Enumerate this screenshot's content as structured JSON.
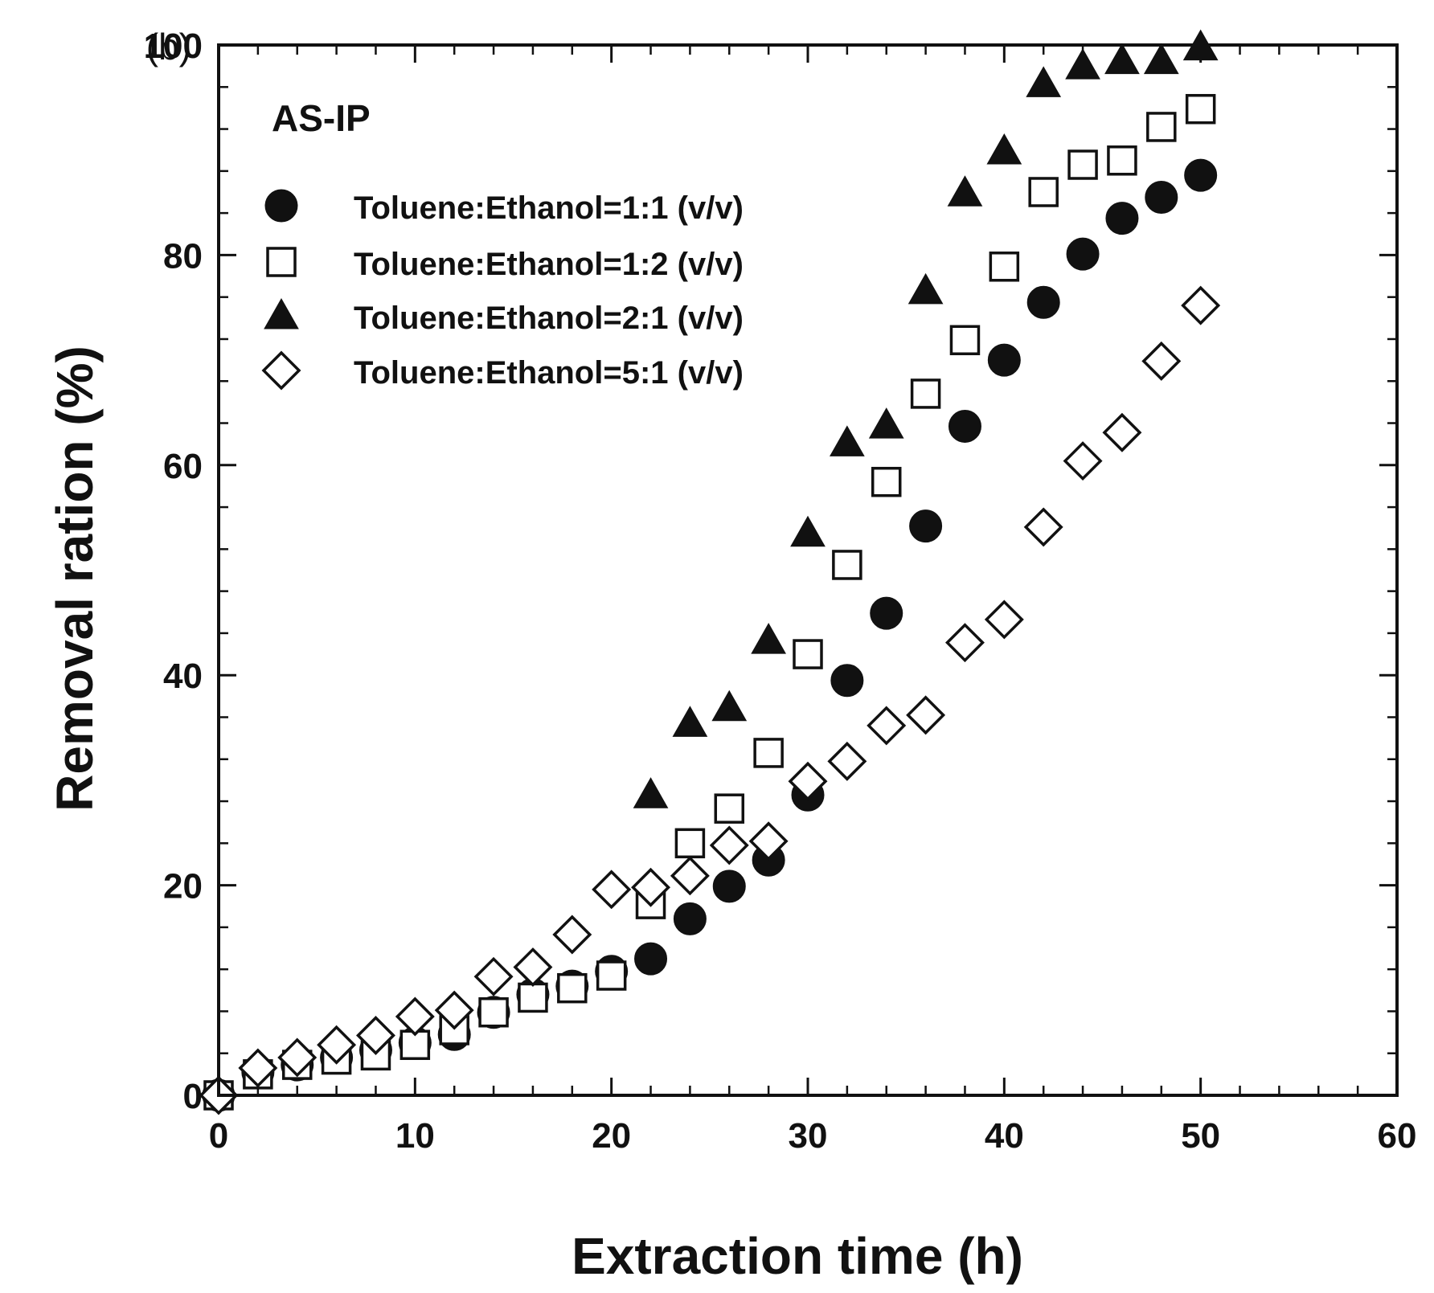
{
  "chart_data": {
    "type": "scatter",
    "panel_label": "(b)",
    "annotation": "AS-IP",
    "xlabel": "Extraction time (h)",
    "ylabel": "Removal ration (%)",
    "xlim": [
      0,
      60
    ],
    "ylim": [
      0,
      100
    ],
    "x_ticks": [
      0,
      10,
      20,
      30,
      40,
      50,
      60
    ],
    "y_ticks": [
      0,
      20,
      40,
      60,
      80,
      100
    ],
    "grid": false,
    "legend_position": "top-left",
    "series": [
      {
        "name": "Toluene:Ethanol=1:1 (v/v)",
        "marker": "filled-circle",
        "x": [
          0,
          2,
          4,
          6,
          8,
          10,
          12,
          14,
          16,
          18,
          20,
          22,
          24,
          26,
          28,
          30,
          32,
          34,
          36,
          38,
          40,
          42,
          44,
          46,
          48,
          50
        ],
        "y": [
          0,
          2.2,
          2.9,
          3.6,
          4.3,
          5.0,
          5.8,
          7.9,
          9.6,
          10.4,
          11.8,
          13.0,
          16.8,
          19.9,
          22.4,
          28.6,
          39.5,
          45.9,
          54.2,
          63.7,
          70.0,
          75.5,
          80.1,
          83.5,
          85.5,
          87.6
        ]
      },
      {
        "name": "Toluene:Ethanol=1:2 (v/v)",
        "marker": "open-square",
        "x": [
          0,
          2,
          4,
          6,
          8,
          10,
          12,
          14,
          16,
          18,
          20,
          22,
          24,
          26,
          28,
          30,
          32,
          34,
          36,
          38,
          40,
          42,
          44,
          46,
          48,
          50
        ],
        "y": [
          0,
          2.0,
          2.9,
          3.4,
          3.8,
          4.8,
          6.2,
          7.9,
          9.3,
          10.2,
          11.4,
          18.2,
          24.0,
          27.3,
          32.6,
          42.0,
          50.5,
          58.4,
          66.8,
          71.9,
          78.9,
          86.0,
          88.6,
          89.0,
          92.2,
          93.9
        ]
      },
      {
        "name": "Toluene:Ethanol=2:1 (v/v)",
        "marker": "filled-triangle",
        "x": [
          22,
          24,
          26,
          28,
          30,
          32,
          34,
          36,
          38,
          40,
          42,
          44,
          46,
          48,
          50
        ],
        "y": [
          28.6,
          35.4,
          36.9,
          43.3,
          53.5,
          62.1,
          63.8,
          76.6,
          85.9,
          89.9,
          96.3,
          98.0,
          98.5,
          98.5,
          99.8
        ]
      },
      {
        "name": "Toluene:Ethanol=5:1 (v/v)",
        "marker": "open-diamond",
        "x": [
          0,
          2,
          4,
          6,
          8,
          10,
          12,
          14,
          16,
          18,
          20,
          22,
          24,
          26,
          28,
          30,
          32,
          34,
          36,
          38,
          40,
          42,
          44,
          46,
          48,
          50
        ],
        "y": [
          0,
          2.6,
          3.6,
          4.8,
          5.7,
          7.5,
          8.1,
          11.3,
          12.2,
          15.3,
          19.6,
          19.8,
          20.9,
          23.8,
          24.2,
          29.9,
          31.8,
          35.2,
          36.2,
          43.1,
          45.3,
          54.1,
          60.4,
          63.1,
          69.9,
          75.2
        ]
      }
    ]
  }
}
